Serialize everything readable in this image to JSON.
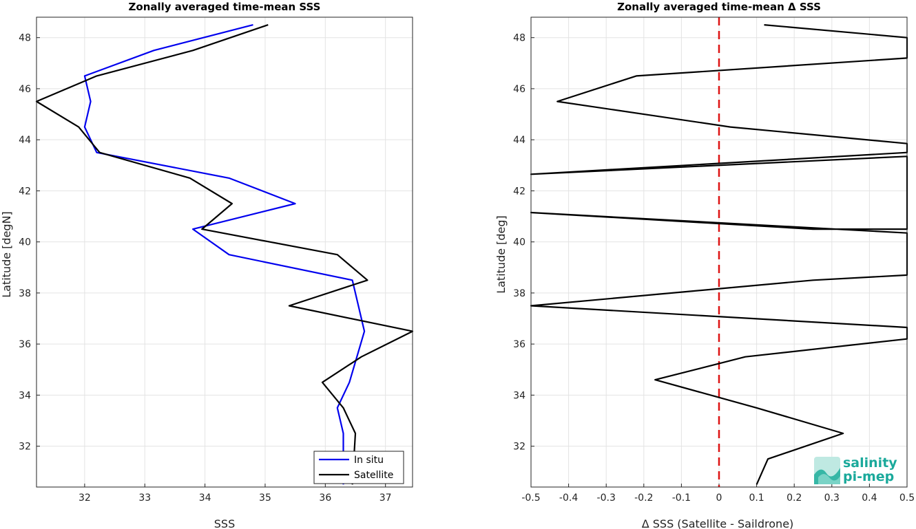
{
  "chart_data": [
    {
      "type": "line",
      "title": "Zonally averaged time-mean SSS",
      "xlabel": "SSS",
      "ylabel": "Latitude [degN]",
      "xlim": [
        31.2,
        37.45
      ],
      "ylim": [
        30.4,
        48.8
      ],
      "xticks": [
        32,
        33,
        34,
        35,
        36,
        37
      ],
      "yticks": [
        32,
        34,
        36,
        38,
        40,
        42,
        44,
        46,
        48
      ],
      "grid": true,
      "legend": "bottom-right",
      "series": [
        {
          "name": "In situ",
          "color": "#0000ee",
          "x": [
            36.3,
            36.3,
            36.2,
            36.4,
            36.65,
            36.45,
            34.4,
            33.8,
            35.5,
            34.4,
            32.2,
            32.0,
            32.1,
            32.0,
            33.15,
            34.8
          ],
          "y": [
            30.5,
            32.5,
            33.5,
            34.5,
            36.5,
            38.5,
            39.5,
            40.5,
            41.5,
            42.5,
            43.5,
            44.5,
            45.5,
            46.5,
            47.5,
            48.5
          ]
        },
        {
          "name": "Satellite",
          "color": "#000000",
          "x": [
            36.45,
            36.5,
            36.3,
            35.95,
            36.6,
            37.45,
            35.4,
            36.7,
            36.2,
            33.95,
            34.45,
            33.75,
            32.25,
            31.9,
            31.2,
            32.2,
            33.8,
            35.05
          ],
          "y": [
            30.5,
            32.5,
            33.5,
            34.5,
            35.5,
            36.5,
            37.5,
            38.5,
            39.5,
            40.5,
            41.5,
            42.5,
            43.5,
            44.5,
            45.5,
            46.5,
            47.5,
            48.5
          ]
        }
      ]
    },
    {
      "type": "line",
      "title": "Zonally averaged time-mean Δ SSS",
      "xlabel": "Δ SSS (Satellite - Saildrone)",
      "ylabel": "Latitude [deg]",
      "xlim": [
        -0.5,
        0.5
      ],
      "ylim": [
        30.4,
        48.8
      ],
      "xticks": [
        -0.5,
        -0.4,
        -0.3,
        -0.2,
        -0.1,
        0,
        0.1,
        0.2,
        0.3,
        0.4,
        0.5
      ],
      "ytick_labels": [
        "32",
        "34",
        "36",
        "38",
        "40",
        "42",
        "44",
        "46",
        "48"
      ],
      "yticks": [
        32,
        34,
        36,
        38,
        40,
        42,
        44,
        46,
        48
      ],
      "grid": true,
      "reference_line": {
        "x": 0,
        "color": "#dd1111",
        "style": "dashed"
      },
      "series": [
        {
          "color": "#000000",
          "x": [
            0.1,
            0.13,
            0.33,
            0.1,
            -0.17,
            0.07,
            0.5,
            0.5,
            -0.5,
            0.25,
            0.5,
            0.5,
            -0.5,
            0.25,
            0.5,
            0.5,
            -0.5,
            0.5,
            0.5,
            0.03,
            -0.43,
            -0.22,
            0.5,
            0.5,
            0.12
          ],
          "y": [
            30.5,
            31.5,
            32.5,
            33.5,
            34.6,
            35.5,
            36.2,
            36.65,
            37.5,
            38.5,
            38.7,
            40.35,
            41.15,
            40.5,
            40.5,
            43.35,
            42.65,
            43.5,
            43.85,
            44.5,
            45.5,
            46.5,
            47.2,
            48.0,
            48.5
          ]
        }
      ]
    }
  ],
  "logo": {
    "line1": "salinity",
    "line2": "pi-mep"
  }
}
